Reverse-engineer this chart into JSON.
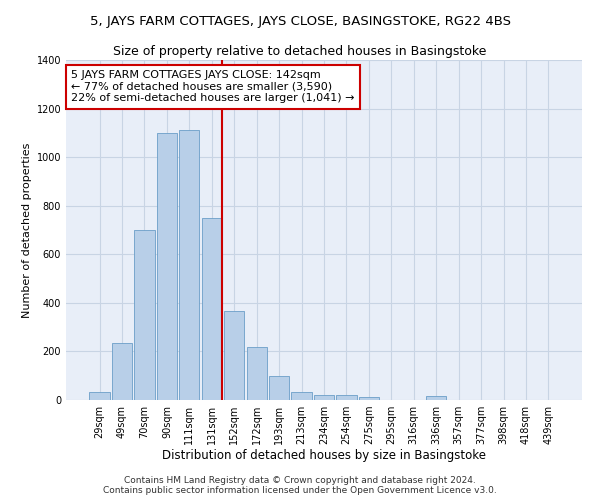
{
  "title1": "5, JAYS FARM COTTAGES, JAYS CLOSE, BASINGSTOKE, RG22 4BS",
  "title2": "Size of property relative to detached houses in Basingstoke",
  "xlabel": "Distribution of detached houses by size in Basingstoke",
  "ylabel": "Number of detached properties",
  "categories": [
    "29sqm",
    "49sqm",
    "70sqm",
    "90sqm",
    "111sqm",
    "131sqm",
    "152sqm",
    "172sqm",
    "193sqm",
    "213sqm",
    "234sqm",
    "254sqm",
    "275sqm",
    "295sqm",
    "316sqm",
    "336sqm",
    "357sqm",
    "377sqm",
    "398sqm",
    "418sqm",
    "439sqm"
  ],
  "values": [
    35,
    235,
    700,
    1100,
    1110,
    750,
    365,
    220,
    100,
    32,
    20,
    20,
    14,
    0,
    0,
    15,
    0,
    0,
    0,
    0,
    0
  ],
  "bar_color": "#b8cfe8",
  "bar_edge_color": "#6b9ec8",
  "grid_color": "#c8d4e4",
  "background_color": "#e8eef8",
  "vline_color": "#cc0000",
  "annotation_text": "5 JAYS FARM COTTAGES JAYS CLOSE: 142sqm\n← 77% of detached houses are smaller (3,590)\n22% of semi-detached houses are larger (1,041) →",
  "annotation_box_edge_color": "#cc0000",
  "footer1": "Contains HM Land Registry data © Crown copyright and database right 2024.",
  "footer2": "Contains public sector information licensed under the Open Government Licence v3.0.",
  "ylim": [
    0,
    1400
  ],
  "yticks": [
    0,
    200,
    400,
    600,
    800,
    1000,
    1200,
    1400
  ],
  "title1_fontsize": 9.5,
  "title2_fontsize": 9,
  "xlabel_fontsize": 8.5,
  "ylabel_fontsize": 8,
  "tick_fontsize": 7,
  "annotation_fontsize": 8,
  "footer_fontsize": 6.5
}
